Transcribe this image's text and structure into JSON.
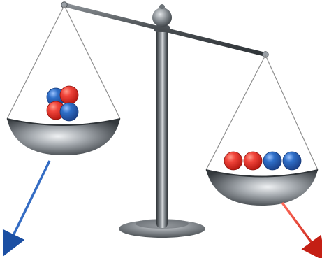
{
  "scene": {
    "colors": {
      "background": "#ffffff",
      "metal_dark": "#3f4448",
      "metal_mid": "#7a7f84",
      "metal_light": "#d7dadd",
      "sphere_red": "#e2342b",
      "sphere_blue": "#2f6fc8",
      "arrow_blue": "#1f5fb8",
      "arrow_red": "#e03a2a"
    },
    "icons": {
      "left_arrow": "arrow-down-left-icon",
      "right_arrow": "arrow-down-right-icon",
      "pivot": "pivot-finial-icon"
    },
    "left_pan": {
      "spheres": [
        "blue",
        "red",
        "red",
        "blue"
      ]
    },
    "right_pan": {
      "spheres": [
        "red",
        "red",
        "blue",
        "blue"
      ]
    }
  }
}
